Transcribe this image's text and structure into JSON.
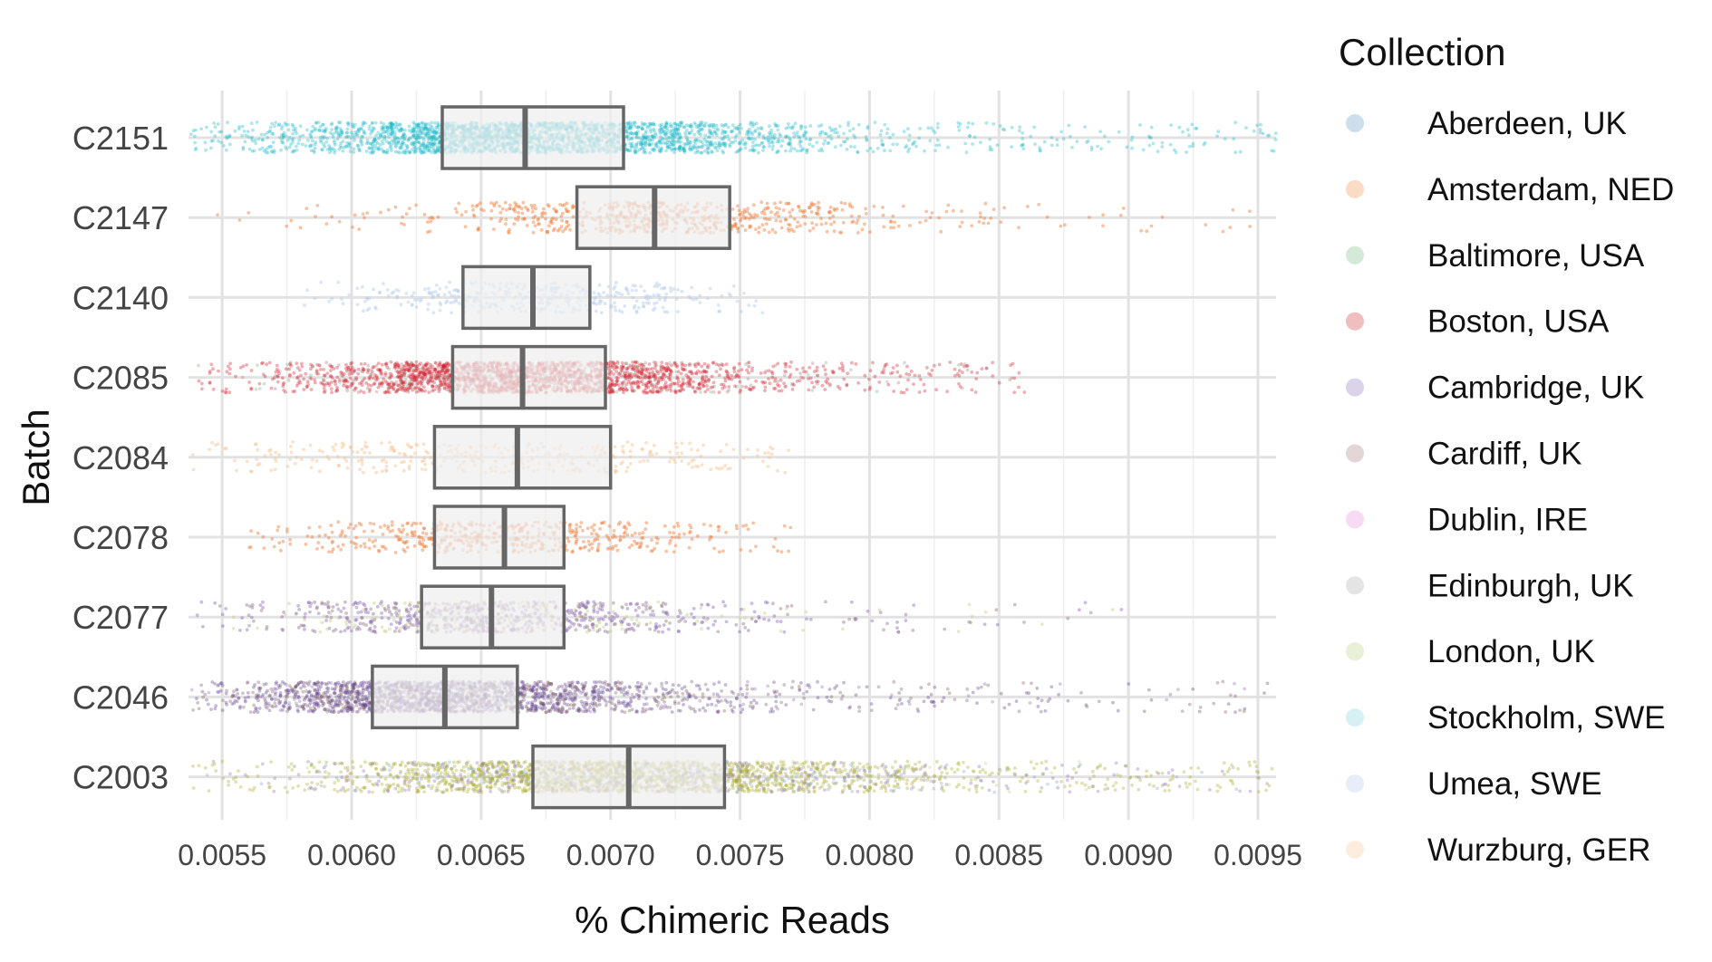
{
  "chart_data": {
    "type": "jittered strip plot with boxplots",
    "title": "",
    "xlabel": "% Chimeric Reads",
    "ylabel": "Batch",
    "xlim": [
      0.00537,
      0.00957
    ],
    "x_ticks": [
      "0.0055",
      "0.0060",
      "0.0065",
      "0.0070",
      "0.0075",
      "0.0080",
      "0.0085",
      "0.0090",
      "0.0095"
    ],
    "x_tick_values": [
      0.0055,
      0.006,
      0.0065,
      0.007,
      0.0075,
      0.008,
      0.0085,
      0.009,
      0.0095
    ],
    "grid": true,
    "legend": {
      "title": "Collection",
      "placement": "right",
      "entries": [
        {
          "label": "Aberdeen, UK",
          "color": "#7fa7cc"
        },
        {
          "label": "Amsterdam, NED",
          "color": "#f5a16a"
        },
        {
          "label": "Baltimore, USA",
          "color": "#8dc496"
        },
        {
          "label": "Boston, USA",
          "color": "#d9535a"
        },
        {
          "label": "Cambridge, UK",
          "color": "#a08cc8"
        },
        {
          "label": "Cardiff, UK",
          "color": "#b89494"
        },
        {
          "label": "Dublin, IRE",
          "color": "#ee9ee6"
        },
        {
          "label": "Edinburgh, UK",
          "color": "#b9b9b9"
        },
        {
          "label": "London, UK",
          "color": "#c8d890"
        },
        {
          "label": "Stockholm, SWE",
          "color": "#92d8e2"
        },
        {
          "label": "Umea, SWE",
          "color": "#c0d2f0"
        },
        {
          "label": "Wurzburg, GER",
          "color": "#fad0aa"
        }
      ]
    },
    "batches": [
      {
        "name": "C2151",
        "q1": 0.00635,
        "median": 0.00667,
        "q3": 0.00705,
        "n": 2600,
        "spread_lo": 0.00537,
        "spread_hi": 0.00957,
        "density": "high",
        "mix": [
          {
            "color": "#1ab8c9",
            "w": 1
          }
        ]
      },
      {
        "name": "C2147",
        "q1": 0.00687,
        "median": 0.00717,
        "q3": 0.00746,
        "n": 650,
        "spread_lo": 0.00545,
        "spread_hi": 0.0095,
        "density": "medium",
        "mix": [
          {
            "color": "#f07a35",
            "w": 1
          }
        ]
      },
      {
        "name": "C2140",
        "q1": 0.00643,
        "median": 0.0067,
        "q3": 0.00692,
        "n": 380,
        "spread_lo": 0.0058,
        "spread_hi": 0.0076,
        "density": "low",
        "mix": [
          {
            "color": "#b8cdee",
            "w": 1
          }
        ]
      },
      {
        "name": "C2085",
        "q1": 0.00639,
        "median": 0.00666,
        "q3": 0.00698,
        "n": 2300,
        "spread_lo": 0.00537,
        "spread_hi": 0.0086,
        "density": "high",
        "mix": [
          {
            "color": "#d01a28",
            "w": 0.82
          },
          {
            "color": "#7fb089",
            "w": 0.06
          },
          {
            "color": "#b07878",
            "w": 0.12
          }
        ]
      },
      {
        "name": "C2084",
        "q1": 0.00632,
        "median": 0.00664,
        "q3": 0.007,
        "n": 380,
        "spread_lo": 0.00537,
        "spread_hi": 0.0077,
        "density": "low",
        "mix": [
          {
            "color": "#f8c598",
            "w": 1
          }
        ]
      },
      {
        "name": "C2078",
        "q1": 0.00632,
        "median": 0.00659,
        "q3": 0.00682,
        "n": 520,
        "spread_lo": 0.0056,
        "spread_hi": 0.0077,
        "density": "medium",
        "mix": [
          {
            "color": "#f07a35",
            "w": 1
          }
        ]
      },
      {
        "name": "C2077",
        "q1": 0.00627,
        "median": 0.00654,
        "q3": 0.00682,
        "n": 900,
        "spread_lo": 0.0054,
        "spread_hi": 0.009,
        "density": "medium",
        "mix": [
          {
            "color": "#8e6ab8",
            "w": 0.55
          },
          {
            "color": "#9a7a7a",
            "w": 0.25
          },
          {
            "color": "#c7d18a",
            "w": 0.2
          }
        ]
      },
      {
        "name": "C2046",
        "q1": 0.00608,
        "median": 0.00636,
        "q3": 0.00664,
        "n": 2200,
        "spread_lo": 0.00537,
        "spread_hi": 0.00957,
        "density": "high",
        "mix": [
          {
            "color": "#5c3d8c",
            "w": 0.55
          },
          {
            "color": "#7a5a5a",
            "w": 0.3
          },
          {
            "color": "#8e6ab8",
            "w": 0.15
          }
        ]
      },
      {
        "name": "C2003",
        "q1": 0.0067,
        "median": 0.00707,
        "q3": 0.00744,
        "n": 2600,
        "spread_lo": 0.00537,
        "spread_hi": 0.00957,
        "density": "high",
        "mix": [
          {
            "color": "#a8ad28",
            "w": 0.65
          },
          {
            "color": "#8e6ab8",
            "w": 0.12
          },
          {
            "color": "#9a7a7a",
            "w": 0.1
          },
          {
            "color": "#7fa7cc",
            "w": 0.08
          },
          {
            "color": "#c7d18a",
            "w": 0.05
          }
        ]
      }
    ]
  }
}
